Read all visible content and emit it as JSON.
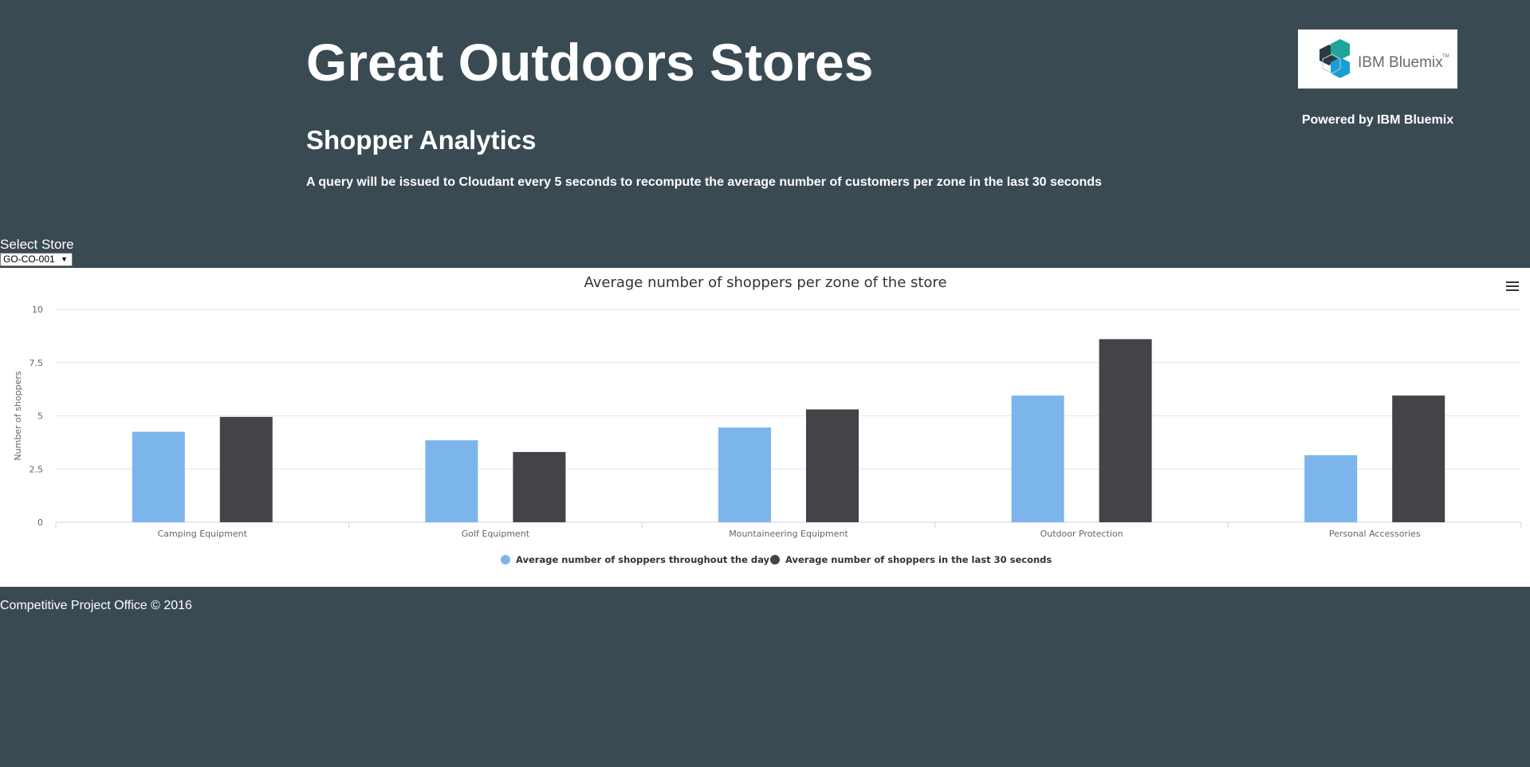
{
  "header": {
    "title": "Great Outdoors Stores",
    "subtitle": "Shopper Analytics",
    "description": "A query will be issued to Cloudant every 5 seconds to recompute the average number of customers per zone in the last 30 seconds",
    "logo_text": "IBM Bluemix",
    "logo_tm": "TM",
    "powered_by": "Powered by IBM Bluemix"
  },
  "store_selector": {
    "label": "Select Store",
    "selected": "GO-CO-001"
  },
  "chart_menu_icon": "hamburger-menu-icon",
  "colors": {
    "background": "#3a4a53",
    "series_day": "#7cb5ec",
    "series_last30": "#434348"
  },
  "chart_data": {
    "type": "bar",
    "title": "Average number of shoppers per zone of the store",
    "xlabel": "",
    "ylabel": "Number of shoppers",
    "categories": [
      "Camping Equipment",
      "Golf Equipment",
      "Mountaineering Equipment",
      "Outdoor Protection",
      "Personal Accessories"
    ],
    "series": [
      {
        "name": "Average number of shoppers throughout the day",
        "values": [
          4.25,
          3.85,
          4.45,
          5.95,
          3.15
        ]
      },
      {
        "name": "Average number of shoppers in the last 30 seconds",
        "values": [
          4.95,
          3.3,
          5.3,
          8.6,
          5.95
        ]
      }
    ],
    "yticks": [
      "0",
      "2.5",
      "5",
      "7.5",
      "10"
    ],
    "ylim": [
      0,
      10
    ],
    "grid": true,
    "legend": "bottom-center"
  },
  "footer": {
    "text": "Competitive Project Office © 2016"
  }
}
